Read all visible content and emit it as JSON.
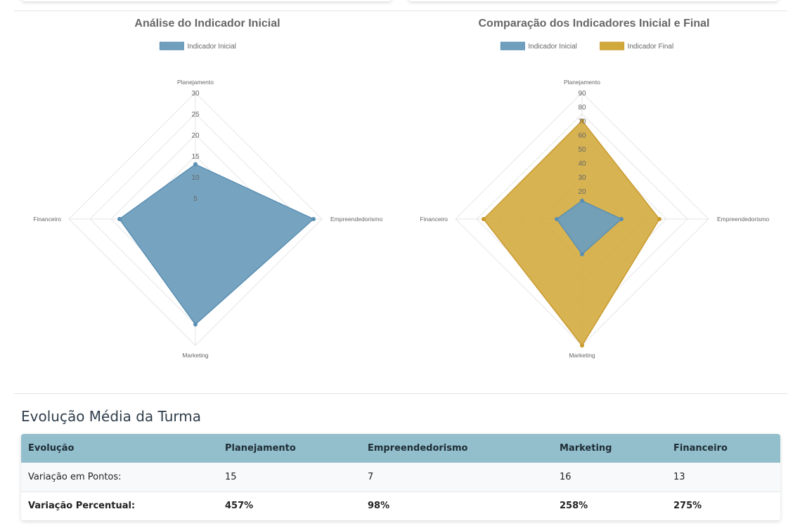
{
  "chart_data": [
    {
      "type": "radar",
      "title": "Análise do Indicador Inicial",
      "categories": [
        "Planejamento",
        "Empreendedorismo",
        "Marketing",
        "Financeiro"
      ],
      "series": [
        {
          "name": "Indicador Inicial",
          "values": [
            13,
            28,
            25,
            18
          ]
        }
      ],
      "r_range": [
        0,
        30
      ],
      "r_ticks": [
        "5",
        "10",
        "15",
        "20",
        "25",
        "30"
      ],
      "legend": "top-center",
      "grid": true
    },
    {
      "type": "radar",
      "title": "Comparação dos Indicadores Inicial e Final",
      "categories": [
        "Planejamento",
        "Empreendedorismo",
        "Marketing",
        "Financeiro"
      ],
      "series": [
        {
          "name": "Indicador Inicial",
          "values": [
            13,
            28,
            25,
            18
          ]
        },
        {
          "name": "Indicador Final",
          "values": [
            70,
            55,
            90,
            70
          ]
        }
      ],
      "r_range": [
        0,
        90
      ],
      "r_ticks": [
        "20",
        "30",
        "40",
        "50",
        "60",
        "70",
        "80",
        "90"
      ],
      "legend": "top-center",
      "grid": true
    }
  ],
  "colors": {
    "inicial_fill": "#6f9fbd",
    "inicial_point": "#5a8fb2",
    "final_fill": "#d1a83a",
    "final_point": "#c99a2e",
    "grid": "#e6e6e6",
    "table_header": "#93bfcd"
  },
  "summary": {
    "title": "Evolução Média da Turma",
    "headers": [
      "Evolução",
      "Planejamento",
      "Empreendedorismo",
      "Marketing",
      "Financeiro"
    ],
    "rows": [
      {
        "label": "Variação em Pontos:",
        "values": [
          "15",
          "7",
          "16",
          "13"
        ]
      },
      {
        "label": "Variação Percentual:",
        "values": [
          "457%",
          "98%",
          "258%",
          "275%"
        ]
      }
    ]
  }
}
